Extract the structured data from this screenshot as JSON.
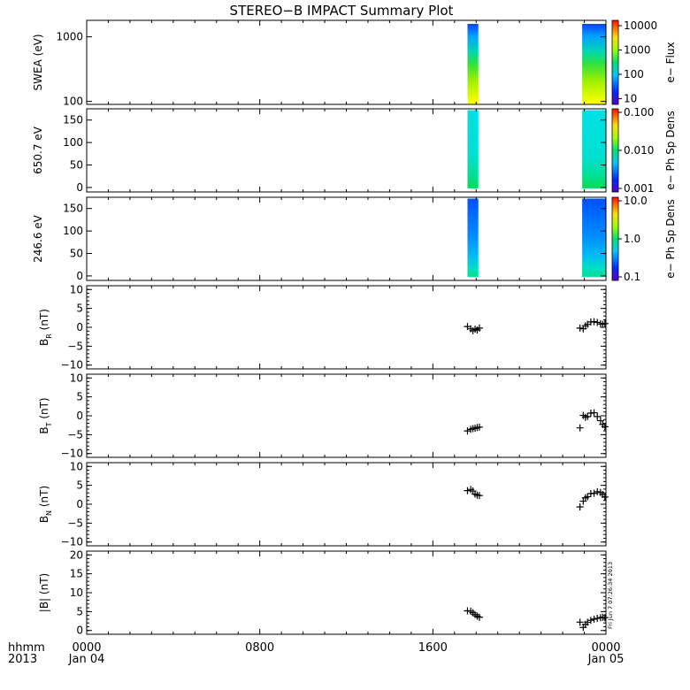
{
  "title": "STEREO−B IMPACT Summary Plot",
  "footer": {
    "left_line1": "hhmm",
    "left_line2": "2013",
    "x_ticks": [
      {
        "label": "0000",
        "sub": "Jan 04",
        "t": 0
      },
      {
        "label": "0800",
        "sub": "",
        "t": 8
      },
      {
        "label": "1600",
        "sub": "",
        "t": 16
      },
      {
        "label": "0000",
        "sub": "Jan 05",
        "t": 24
      }
    ],
    "timestamp": "Fri Jun  7 07:26:34 2013"
  },
  "colors": {
    "panel_border": "#000000",
    "marker": "#000000"
  },
  "colorbars": [
    {
      "panel": 0,
      "ticks": [
        "10000",
        "1000",
        "100",
        "10"
      ],
      "label": "e− Flux"
    },
    {
      "panel": 1,
      "ticks": [
        "0.100",
        "0.010",
        "0.001"
      ],
      "label": "e− Ph Sp Dens"
    },
    {
      "panel": 2,
      "ticks": [
        "10.0",
        "1.0",
        "0.1"
      ],
      "label": "e− Ph Sp Dens"
    }
  ],
  "chart_data": {
    "type": "scatter",
    "x_unit": "hours since 2013-01-04 00:00",
    "xlim": [
      0,
      24
    ],
    "spectrogram_intervals": [
      [
        17.6,
        18.1
      ],
      [
        22.9,
        24.0
      ]
    ],
    "panels": [
      {
        "ylabel": "SWEA (eV)",
        "yscale": "log",
        "yticks": [
          "1000",
          "100"
        ],
        "kind": "spectrogram",
        "ylim": [
          90,
          1800
        ]
      },
      {
        "ylabel": "650.7  eV",
        "yscale": "linear",
        "yticks": [
          "150",
          "100",
          "50",
          "0"
        ],
        "kind": "spectrogram",
        "ylim": [
          -10,
          175
        ]
      },
      {
        "ylabel": "246.6  eV",
        "yscale": "linear",
        "yticks": [
          "150",
          "100",
          "50",
          "0"
        ],
        "kind": "spectrogram",
        "ylim": [
          -10,
          175
        ]
      },
      {
        "ylabel_main": "B",
        "ylabel_sub": "R",
        "ylabel_unit": " (nT)",
        "yticks": [
          "10",
          "5",
          "0",
          "−5",
          "−10"
        ],
        "ylim": [
          -11,
          11
        ],
        "kind": "scatter",
        "points": [
          [
            17.6,
            0.2
          ],
          [
            17.75,
            -0.4
          ],
          [
            17.85,
            -0.9
          ],
          [
            17.95,
            -0.5
          ],
          [
            18.05,
            -0.7
          ],
          [
            18.15,
            -0.2
          ],
          [
            22.8,
            -0.2
          ],
          [
            22.95,
            -0.4
          ],
          [
            23.05,
            0.4
          ],
          [
            23.15,
            0.8
          ],
          [
            23.3,
            1.4
          ],
          [
            23.45,
            1.5
          ],
          [
            23.6,
            1.3
          ],
          [
            23.75,
            0.9
          ],
          [
            23.85,
            0.8
          ],
          [
            23.95,
            1.0
          ]
        ]
      },
      {
        "ylabel_main": "B",
        "ylabel_sub": "T",
        "ylabel_unit": " (nT)",
        "yticks": [
          "10",
          "5",
          "0",
          "−5",
          "−10"
        ],
        "ylim": [
          -11,
          11
        ],
        "kind": "scatter",
        "points": [
          [
            17.6,
            -4.0
          ],
          [
            17.75,
            -3.6
          ],
          [
            17.85,
            -3.4
          ],
          [
            17.95,
            -3.3
          ],
          [
            18.05,
            -3.1
          ],
          [
            18.15,
            -3.0
          ],
          [
            22.8,
            -3.2
          ],
          [
            22.95,
            0.1
          ],
          [
            23.05,
            -0.4
          ],
          [
            23.15,
            -0.2
          ],
          [
            23.3,
            0.7
          ],
          [
            23.45,
            0.8
          ],
          [
            23.6,
            -0.2
          ],
          [
            23.75,
            -1.3
          ],
          [
            23.85,
            -2.3
          ],
          [
            23.95,
            -2.9
          ]
        ]
      },
      {
        "ylabel_main": "B",
        "ylabel_sub": "N",
        "ylabel_unit": " (nT)",
        "yticks": [
          "10",
          "5",
          "0",
          "−5",
          "−10"
        ],
        "ylim": [
          -11,
          11
        ],
        "kind": "scatter",
        "points": [
          [
            17.6,
            3.6
          ],
          [
            17.75,
            3.9
          ],
          [
            17.85,
            3.5
          ],
          [
            17.95,
            2.7
          ],
          [
            18.05,
            2.4
          ],
          [
            18.15,
            2.3
          ],
          [
            22.8,
            -0.7
          ],
          [
            22.95,
            0.8
          ],
          [
            23.05,
            1.7
          ],
          [
            23.15,
            2.0
          ],
          [
            23.3,
            2.8
          ],
          [
            23.45,
            2.9
          ],
          [
            23.6,
            3.3
          ],
          [
            23.75,
            3.1
          ],
          [
            23.85,
            2.6
          ],
          [
            23.95,
            1.9
          ]
        ]
      },
      {
        "ylabel_main": "|B|",
        "ylabel_sub": "",
        "ylabel_unit": " (nT)",
        "yticks": [
          "20",
          "15",
          "10",
          "5",
          "0"
        ],
        "ylim": [
          -1,
          21
        ],
        "kind": "scatter",
        "points": [
          [
            17.6,
            5.2
          ],
          [
            17.75,
            5.1
          ],
          [
            17.85,
            4.7
          ],
          [
            17.95,
            4.2
          ],
          [
            18.05,
            3.8
          ],
          [
            18.15,
            3.5
          ],
          [
            22.8,
            2.2
          ],
          [
            22.95,
            0.8
          ],
          [
            23.05,
            1.6
          ],
          [
            23.15,
            2.2
          ],
          [
            23.3,
            2.7
          ],
          [
            23.45,
            3.0
          ],
          [
            23.6,
            3.2
          ],
          [
            23.75,
            3.4
          ],
          [
            23.85,
            3.5
          ],
          [
            23.95,
            3.4
          ]
        ]
      }
    ]
  }
}
